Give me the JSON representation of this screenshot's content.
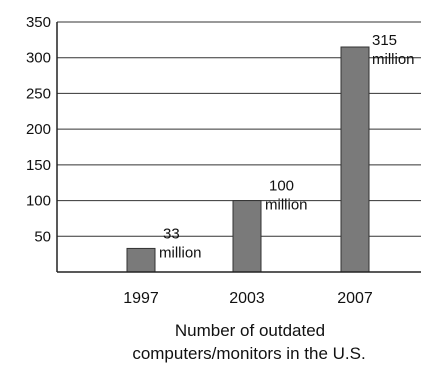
{
  "chart_data": {
    "type": "bar",
    "categories": [
      "1997",
      "2003",
      "2007"
    ],
    "values": [
      33,
      100,
      315
    ],
    "data_labels": [
      [
        "33",
        "million"
      ],
      [
        "100",
        "million"
      ],
      [
        "315",
        "million"
      ]
    ],
    "xlabel_lines": [
      "Number of outdated",
      "computers/monitors in the U.S."
    ],
    "ylim": [
      0,
      350
    ],
    "yticks": [
      50,
      100,
      150,
      200,
      250,
      300,
      350
    ],
    "ytick_labels": [
      "50",
      "100",
      "150",
      "200",
      "250",
      "300",
      "350"
    ],
    "grid": true,
    "bar_color": "#7a7a7a"
  }
}
